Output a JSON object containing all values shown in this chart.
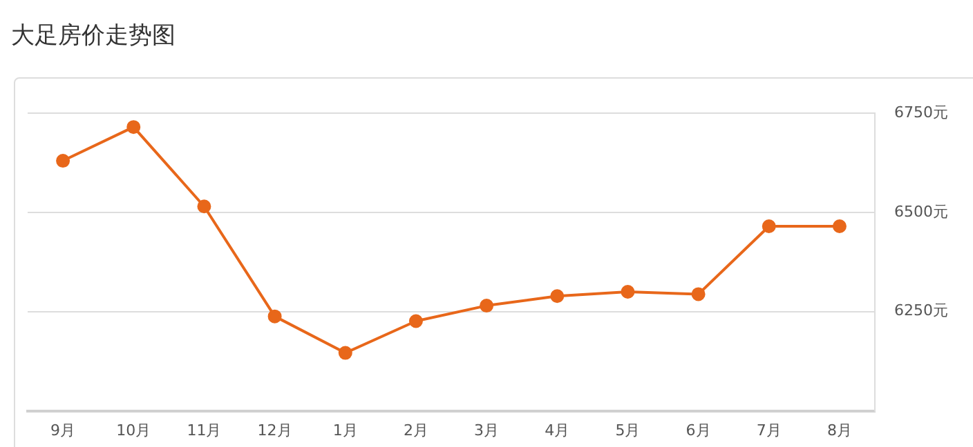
{
  "chart_data": {
    "type": "line",
    "title": "大足房价走势图",
    "categories": [
      "9月",
      "10月",
      "11月",
      "12月",
      "1月",
      "2月",
      "3月",
      "4月",
      "5月",
      "6月",
      "7月",
      "8月"
    ],
    "series": [
      {
        "color": "#e8671a",
        "values": [
          6630,
          6715,
          6515,
          6238,
          6146,
          6226,
          6265,
          6289,
          6300,
          6294,
          6465,
          6465
        ]
      }
    ],
    "ylim": [
      6000,
      6750
    ],
    "yticks": [
      {
        "value": 6000,
        "label": null
      },
      {
        "value": 6250,
        "label": "6250元"
      },
      {
        "value": 6500,
        "label": "6500元"
      },
      {
        "value": 6750,
        "label": "6750元"
      }
    ],
    "grid": "y",
    "legend": false,
    "marker": "circle",
    "line_style": "solid"
  }
}
